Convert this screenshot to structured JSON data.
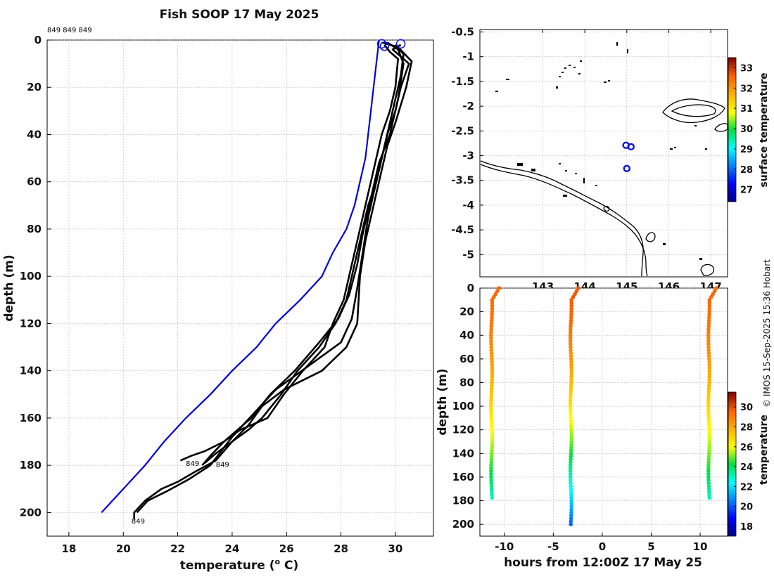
{
  "title": "Fish SOOP 17 May 2025",
  "header_ids": "849 849 849",
  "credit": "© IMOS 15-Sep-2025 15:36 Hobart",
  "colors": {
    "reference": "#0000dd",
    "profile": "#000000",
    "grid": "#b8b8b8",
    "marker": "#1010e0"
  },
  "chart_data": [
    {
      "type": "line",
      "name": "profiles",
      "xlabel": "temperature (",
      "xlabel_sup": "o",
      "xlabel_end": " C)",
      "ylabel": "depth (m)",
      "xlim": [
        17.2,
        31.4
      ],
      "ylim": [
        210,
        0
      ],
      "xticks": [
        "18",
        "20",
        "22",
        "24",
        "26",
        "28",
        "30"
      ],
      "yticks": [
        "0",
        "20",
        "40",
        "60",
        "80",
        "100",
        "120",
        "140",
        "160",
        "180",
        "200"
      ],
      "reference_profile": [
        [
          29.4,
          0
        ],
        [
          29.3,
          10
        ],
        [
          29.2,
          20
        ],
        [
          29.1,
          30
        ],
        [
          29.0,
          40
        ],
        [
          28.9,
          50
        ],
        [
          28.7,
          60
        ],
        [
          28.5,
          70
        ],
        [
          28.2,
          80
        ],
        [
          27.7,
          90
        ],
        [
          27.3,
          100
        ],
        [
          26.5,
          110
        ],
        [
          25.6,
          120
        ],
        [
          24.9,
          130
        ],
        [
          24.0,
          140
        ],
        [
          23.2,
          150
        ],
        [
          22.3,
          160
        ],
        [
          21.5,
          170
        ],
        [
          20.8,
          180
        ],
        [
          20.0,
          190
        ],
        [
          19.2,
          200
        ]
      ],
      "series": [
        {
          "name": "849",
          "values": [
            [
              30.2,
              2
            ],
            [
              29.9,
              4
            ],
            [
              30.2,
              7
            ],
            [
              30.5,
              10
            ],
            [
              30.2,
              20
            ],
            [
              30.0,
              30
            ],
            [
              29.7,
              40
            ],
            [
              29.5,
              50
            ],
            [
              29.3,
              60
            ],
            [
              29.0,
              70
            ],
            [
              28.8,
              80
            ],
            [
              28.6,
              90
            ],
            [
              28.4,
              100
            ],
            [
              28.2,
              110
            ],
            [
              27.8,
              120
            ],
            [
              27.2,
              130
            ],
            [
              26.4,
              140
            ],
            [
              25.8,
              150
            ],
            [
              25.1,
              160
            ],
            [
              24.6,
              165
            ],
            [
              24.0,
              170
            ],
            [
              23.4,
              175
            ],
            [
              23.0,
              179
            ]
          ],
          "label": "849",
          "label_value": [
            23.4,
            179.5
          ]
        },
        {
          "name": "849",
          "values": [
            [
              29.6,
              2
            ],
            [
              29.8,
              5
            ],
            [
              30.1,
              8
            ],
            [
              30.0,
              20
            ],
            [
              29.8,
              30
            ],
            [
              29.5,
              40
            ],
            [
              29.3,
              50
            ],
            [
              29.1,
              60
            ],
            [
              28.9,
              70
            ],
            [
              28.7,
              80
            ],
            [
              28.5,
              90
            ],
            [
              28.3,
              100
            ],
            [
              28.1,
              110
            ],
            [
              27.7,
              120
            ],
            [
              27.4,
              130
            ],
            [
              26.6,
              140
            ],
            [
              25.9,
              150
            ],
            [
              25.3,
              160
            ],
            [
              24.3,
              165
            ],
            [
              23.7,
              170
            ],
            [
              23.0,
              174
            ],
            [
              22.5,
              176
            ],
            [
              22.1,
              178
            ]
          ],
          "label": "849",
          "label_value": [
            22.3,
            179
          ]
        },
        {
          "name": "849",
          "values": [
            [
              29.5,
              1
            ],
            [
              30.1,
              3
            ],
            [
              30.6,
              9
            ],
            [
              30.4,
              20
            ],
            [
              30.0,
              35
            ],
            [
              29.7,
              45
            ],
            [
              29.5,
              55
            ],
            [
              29.3,
              65
            ],
            [
              29.1,
              75
            ],
            [
              28.9,
              85
            ],
            [
              28.7,
              100
            ],
            [
              28.6,
              120
            ],
            [
              28.2,
              130
            ],
            [
              27.3,
              140
            ],
            [
              25.9,
              148
            ],
            [
              25.1,
              155
            ],
            [
              24.6,
              163
            ],
            [
              24.0,
              170
            ],
            [
              23.4,
              178
            ],
            [
              22.6,
              183
            ],
            [
              22.0,
              187
            ],
            [
              21.4,
              190
            ],
            [
              20.8,
              195
            ],
            [
              20.4,
              200
            ],
            [
              20.4,
              203
            ]
          ],
          "label": "849",
          "label_value": [
            20.3,
            203.5
          ]
        },
        {
          "name": "849",
          "values": [
            [
              30.0,
              2
            ],
            [
              30.3,
              6
            ],
            [
              30.2,
              15
            ],
            [
              29.9,
              30
            ],
            [
              29.6,
              45
            ],
            [
              29.4,
              55
            ],
            [
              29.2,
              65
            ],
            [
              29.0,
              75
            ],
            [
              28.8,
              90
            ],
            [
              28.6,
              105
            ],
            [
              28.4,
              118
            ],
            [
              28.0,
              128
            ],
            [
              26.8,
              138
            ],
            [
              25.6,
              148
            ],
            [
              24.8,
              158
            ],
            [
              24.0,
              168
            ],
            [
              23.2,
              180
            ],
            [
              22.4,
              186
            ],
            [
              21.6,
              191
            ],
            [
              20.9,
              195
            ],
            [
              20.5,
              200
            ]
          ],
          "label": "",
          "label_value": [
            0,
            0
          ]
        },
        {
          "name": "849",
          "values": [
            [
              29.7,
              1
            ],
            [
              30.1,
              4
            ],
            [
              30.3,
              10
            ],
            [
              30.1,
              25
            ],
            [
              29.8,
              40
            ],
            [
              29.4,
              52
            ],
            [
              29.2,
              62
            ],
            [
              29.0,
              72
            ],
            [
              28.8,
              82
            ],
            [
              28.6,
              95
            ],
            [
              28.3,
              108
            ],
            [
              27.9,
              118
            ],
            [
              27.2,
              128
            ],
            [
              26.3,
              140
            ],
            [
              25.4,
              150
            ],
            [
              24.7,
              160
            ],
            [
              24.2,
              165
            ],
            [
              23.7,
              170
            ],
            [
              23.2,
              176
            ],
            [
              22.9,
              180
            ]
          ],
          "label": "",
          "label_value": [
            0,
            0
          ]
        }
      ],
      "surface_markers": [
        [
          29.5,
          1
        ],
        [
          30.2,
          1
        ],
        [
          29.6,
          2
        ]
      ]
    },
    {
      "type": "scatter",
      "name": "map",
      "xlim": [
        141.5,
        147.4
      ],
      "ylim": [
        -5.45,
        -0.45
      ],
      "xticks": [
        "143",
        "144",
        "145",
        "146",
        "147"
      ],
      "yticks": [
        "-0.5",
        "-1",
        "-1.5",
        "-2",
        "-2.5",
        "-3",
        "-3.5",
        "-4",
        "-4.5",
        "-5"
      ],
      "stations": [
        [
          144.98,
          -2.79
        ],
        [
          145.1,
          -2.82
        ],
        [
          145.0,
          -3.26
        ]
      ],
      "colorbar": {
        "label": "surface temperature",
        "min": 26.4,
        "max": 33.5,
        "ticks": [
          "27",
          "28",
          "29",
          "30",
          "31",
          "32",
          "33"
        ]
      }
    },
    {
      "type": "scatter",
      "name": "time-depth",
      "xlabel": "hours from 12:00Z 17 May 25",
      "ylabel": "depth (m)",
      "xlim": [
        -12.5,
        12.8
      ],
      "ylim": [
        210,
        0
      ],
      "xticks": [
        "-10",
        "-5",
        "0",
        "5",
        "10"
      ],
      "yticks": [
        "0",
        "20",
        "40",
        "60",
        "80",
        "100",
        "120",
        "140",
        "160",
        "180",
        "200"
      ],
      "casts": [
        {
          "hours": -11.3,
          "max_depth": 178,
          "temp_surface": 29.5,
          "temp_bottom": 23.0
        },
        {
          "hours": -3.2,
          "max_depth": 202,
          "temp_surface": 29.8,
          "temp_bottom": 20.0
        },
        {
          "hours": 10.9,
          "max_depth": 178,
          "temp_surface": 29.5,
          "temp_bottom": 23.0
        }
      ],
      "colorbar": {
        "label": "temperature",
        "min": 17.0,
        "max": 31.5,
        "ticks": [
          "18",
          "20",
          "22",
          "24",
          "26",
          "28",
          "30"
        ]
      }
    }
  ]
}
